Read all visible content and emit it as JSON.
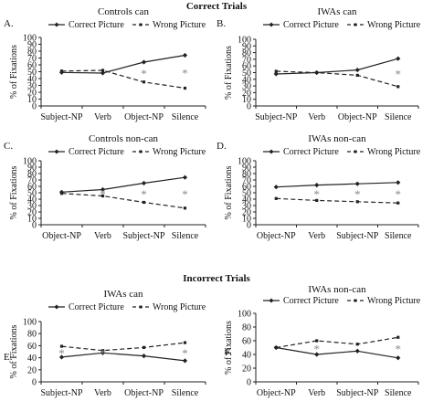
{
  "sections": [
    {
      "title": "Correct Trials"
    },
    {
      "title": "Incorrect Trials"
    }
  ],
  "legend": {
    "correct": "Correct Picture",
    "wrong": "Wrong Picture"
  },
  "chart_data": [
    {
      "type": "line",
      "panel": "A.",
      "title": "Controls can",
      "categories": [
        "Subject-NP",
        "Verb",
        "Object-NP",
        "Silence"
      ],
      "ylabel": "% of Fixations",
      "ylim": [
        0,
        100
      ],
      "yticks": [
        0,
        10,
        20,
        30,
        40,
        50,
        60,
        70,
        80,
        90,
        100
      ],
      "series": [
        {
          "name": "Correct Picture",
          "values": [
            49,
            48,
            64,
            74
          ]
        },
        {
          "name": "Wrong Picture",
          "values": [
            51,
            52,
            35,
            26
          ]
        }
      ],
      "significance": [
        false,
        false,
        true,
        true
      ]
    },
    {
      "type": "line",
      "panel": "B.",
      "title": "IWAs can",
      "categories": [
        "Subject-NP",
        "Verb",
        "Object-NP",
        "Silence"
      ],
      "ylabel": "% of Fixations",
      "ylim": [
        0,
        100
      ],
      "yticks": [
        0,
        10,
        20,
        30,
        40,
        50,
        60,
        70,
        80,
        90,
        100
      ],
      "series": [
        {
          "name": "Correct Picture",
          "values": [
            48,
            50,
            54,
            71
          ]
        },
        {
          "name": "Wrong Picture",
          "values": [
            52,
            50,
            46,
            29
          ]
        }
      ],
      "significance": [
        false,
        false,
        false,
        true
      ]
    },
    {
      "type": "line",
      "panel": "C.",
      "title": "Controls non-can",
      "categories": [
        "Object-NP",
        "Verb",
        "Subject-NP",
        "Silence"
      ],
      "ylabel": "% of Fixations",
      "ylim": [
        0,
        100
      ],
      "yticks": [
        0,
        10,
        20,
        30,
        40,
        50,
        60,
        70,
        80,
        90,
        100
      ],
      "series": [
        {
          "name": "Correct Picture",
          "values": [
            51,
            55,
            65,
            74
          ]
        },
        {
          "name": "Wrong Picture",
          "values": [
            49,
            45,
            35,
            26
          ]
        }
      ],
      "significance": [
        false,
        true,
        true,
        true
      ]
    },
    {
      "type": "line",
      "panel": "D.",
      "title": "IWAs non-can",
      "categories": [
        "Object-NP",
        "Verb",
        "Subject-NP",
        "Silence"
      ],
      "ylabel": "% of Fixations",
      "ylim": [
        0,
        100
      ],
      "yticks": [
        0,
        10,
        20,
        30,
        40,
        50,
        60,
        70,
        80,
        90,
        100
      ],
      "series": [
        {
          "name": "Correct Picture",
          "values": [
            59,
            62,
            64,
            66
          ]
        },
        {
          "name": "Wrong Picture",
          "values": [
            41,
            38,
            36,
            34
          ]
        }
      ],
      "significance": [
        false,
        true,
        true,
        true
      ]
    },
    {
      "type": "line",
      "panel": "E.",
      "title": "IWAs can",
      "categories": [
        "Subject-NP",
        "Verb",
        "Object-NP",
        "Silence"
      ],
      "ylabel": "% of Fixations",
      "ylim": [
        0,
        100
      ],
      "yticks": [
        0,
        20,
        40,
        60,
        80,
        100
      ],
      "series": [
        {
          "name": "Correct Picture",
          "values": [
            41,
            48,
            43,
            35
          ]
        },
        {
          "name": "Wrong Picture",
          "values": [
            59,
            52,
            57,
            65
          ]
        }
      ],
      "significance": [
        true,
        true,
        false,
        true
      ]
    },
    {
      "type": "line",
      "panel": "F.",
      "title": "IWAs non-can",
      "categories": [
        "Object-NP",
        "Verb",
        "Subject-NP",
        "Silence"
      ],
      "ylabel": "% of Fixations",
      "ylim": [
        0,
        100
      ],
      "yticks": [
        0,
        20,
        40,
        60,
        80,
        100
      ],
      "series": [
        {
          "name": "Correct Picture",
          "values": [
            50,
            40,
            45,
            35
          ]
        },
        {
          "name": "Wrong Picture",
          "values": [
            50,
            60,
            55,
            65
          ]
        }
      ],
      "significance": [
        false,
        true,
        false,
        true
      ]
    }
  ]
}
